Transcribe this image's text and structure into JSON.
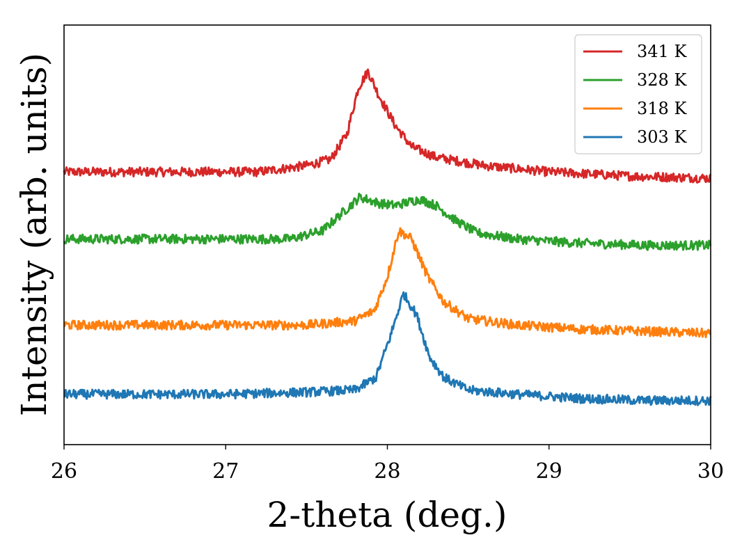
{
  "chart_data": {
    "type": "line",
    "xlabel": "2-theta (deg.)",
    "ylabel": "Intensity (arb. units)",
    "xlim": [
      26,
      30
    ],
    "ylim": [
      0,
      1
    ],
    "x_ticks": [
      "26",
      "27",
      "28",
      "29",
      "30"
    ],
    "y_ticks_shown": false,
    "grid": false,
    "legend_position": "top-right",
    "series": [
      {
        "name": "341 K",
        "color": "#d62728",
        "x": [
          26.0,
          26.4,
          26.8,
          27.2,
          27.5,
          27.65,
          27.75,
          27.82,
          27.88,
          27.95,
          28.05,
          28.15,
          28.3,
          28.6,
          29.0,
          29.5,
          30.0
        ],
        "y": [
          0.65,
          0.65,
          0.65,
          0.65,
          0.665,
          0.68,
          0.74,
          0.85,
          0.89,
          0.83,
          0.76,
          0.71,
          0.685,
          0.665,
          0.65,
          0.64,
          0.635
        ]
      },
      {
        "name": "328 K",
        "color": "#2ca02c",
        "x": [
          26.0,
          26.5,
          27.0,
          27.4,
          27.6,
          27.7,
          27.83,
          27.95,
          28.05,
          28.2,
          28.3,
          28.42,
          28.55,
          28.8,
          29.2,
          29.6,
          30.0
        ],
        "y": [
          0.49,
          0.49,
          0.49,
          0.49,
          0.51,
          0.545,
          0.59,
          0.575,
          0.57,
          0.585,
          0.57,
          0.535,
          0.505,
          0.49,
          0.48,
          0.475,
          0.475
        ]
      },
      {
        "name": "318 K",
        "color": "#ff7f0e",
        "x": [
          26.0,
          26.5,
          27.0,
          27.5,
          27.8,
          27.92,
          28.0,
          28.07,
          28.15,
          28.25,
          28.35,
          28.5,
          28.8,
          29.2,
          29.6,
          30.0
        ],
        "y": [
          0.285,
          0.285,
          0.285,
          0.285,
          0.295,
          0.32,
          0.4,
          0.51,
          0.49,
          0.4,
          0.34,
          0.3,
          0.285,
          0.275,
          0.27,
          0.265
        ]
      },
      {
        "name": "303 K",
        "color": "#1f77b4",
        "x": [
          26.0,
          26.5,
          27.0,
          27.5,
          27.8,
          27.93,
          28.02,
          28.1,
          28.18,
          28.26,
          28.35,
          28.5,
          28.8,
          29.2,
          29.6,
          30.0
        ],
        "y": [
          0.12,
          0.12,
          0.12,
          0.125,
          0.13,
          0.16,
          0.26,
          0.36,
          0.31,
          0.21,
          0.16,
          0.13,
          0.12,
          0.11,
          0.105,
          0.105
        ]
      }
    ]
  }
}
